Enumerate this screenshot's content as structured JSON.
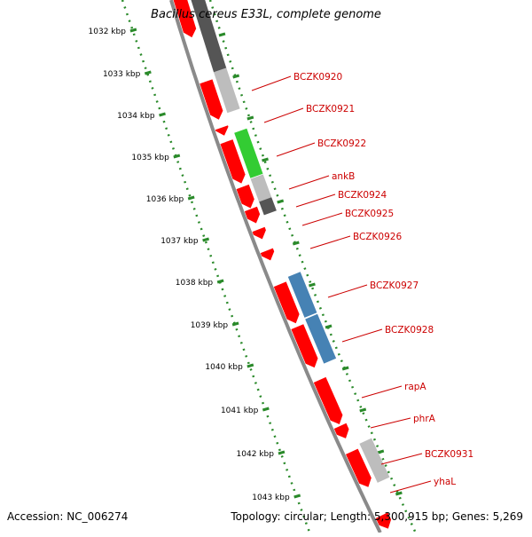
{
  "title": "Bacillus cereus E33L, complete genome",
  "accession": "Accession: NC_006274",
  "summary": "Topology: circular; Length: 5,300,915 bp; Genes: 5,269",
  "colors": {
    "backbone": "#8a8a8a",
    "ruler": "#2a8a2a",
    "gene_label": "#cc0000",
    "cds": "#ff0000",
    "gene_dark": "#555555",
    "gene_light": "#bdbdbd",
    "gene_green": "#33cc33",
    "gene_blue": "#4682b4"
  },
  "ruler_labels": [
    "1032 kbp",
    "1033 kbp",
    "1034 kbp",
    "1035 kbp",
    "1036 kbp",
    "1037 kbp",
    "1038 kbp",
    "1039 kbp",
    "1040 kbp",
    "1041 kbp",
    "1042 kbp",
    "1043 kbp"
  ],
  "gene_labels": [
    "BCZK0920",
    "BCZK0921",
    "BCZK0922",
    "ankB",
    "BCZK0924",
    "BCZK0925",
    "BCZK0926",
    "BCZK0927",
    "BCZK0928",
    "rapA",
    "phrA",
    "BCZK0931",
    "yhaL"
  ]
}
